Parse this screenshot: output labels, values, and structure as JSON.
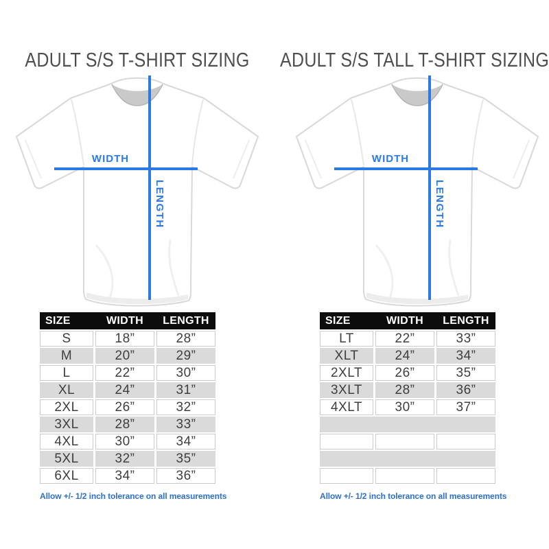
{
  "colors": {
    "accent_blue": "#2b7ae2",
    "footer_blue": "#2e70c9",
    "header_bg": "#0c0c0c",
    "header_text": "#ffffff",
    "row_alt_gray": "#dadada",
    "title_gray": "#4e4e4e"
  },
  "panels": [
    {
      "title": "ADULT S/S T-SHIRT SIZING",
      "diagram": {
        "width_label": "WIDTH",
        "length_label": "LENGTH"
      },
      "table": {
        "headers": [
          "SIZE",
          "WIDTH",
          "LENGTH"
        ],
        "rows": [
          [
            "S",
            "18”",
            "28”"
          ],
          [
            "M",
            "20”",
            "29”"
          ],
          [
            "L",
            "22”",
            "30”"
          ],
          [
            "XL",
            "24”",
            "31”"
          ],
          [
            "2XL",
            "26”",
            "32”"
          ],
          [
            "3XL",
            "28”",
            "33”"
          ],
          [
            "4XL",
            "30”",
            "34”"
          ],
          [
            "5XL",
            "32”",
            "35”"
          ],
          [
            "6XL",
            "34”",
            "36”"
          ]
        ],
        "empty_rows": 0
      },
      "footer": "Allow +/- 1/2 inch tolerance on all measurements"
    },
    {
      "title": "ADULT S/S TALL T-SHIRT SIZING",
      "diagram": {
        "width_label": "WIDTH",
        "length_label": "LENGTH"
      },
      "table": {
        "headers": [
          "SIZE",
          "WIDTH",
          "LENGTH"
        ],
        "rows": [
          [
            "LT",
            "22”",
            "33”"
          ],
          [
            "XLT",
            "24”",
            "34”"
          ],
          [
            "2XLT",
            "26”",
            "35”"
          ],
          [
            "3XLT",
            "28”",
            "36”"
          ],
          [
            "4XLT",
            "30”",
            "37”"
          ]
        ],
        "empty_rows": 4
      },
      "footer": "Allow +/- 1/2 inch tolerance on all measurements"
    }
  ]
}
